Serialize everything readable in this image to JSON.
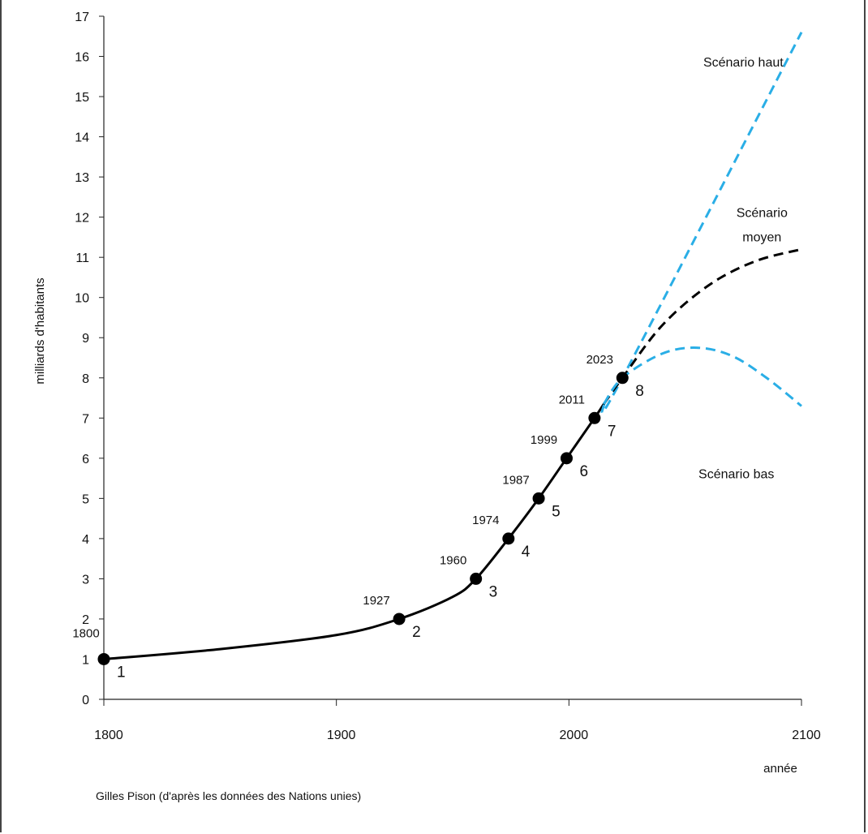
{
  "chart_data": {
    "type": "line",
    "xlabel": "année",
    "ylabel": "milliards d'habitants",
    "source": "Gilles Pison (d'après les données des Nations unies)",
    "xlim": [
      1800,
      2100
    ],
    "ylim": [
      0,
      17
    ],
    "x_ticks": [
      "1800",
      "1900",
      "2000",
      "2100"
    ],
    "y_ticks": [
      "0",
      "1",
      "2",
      "3",
      "4",
      "5",
      "6",
      "7",
      "8",
      "9",
      "10",
      "11",
      "12",
      "13",
      "14",
      "15",
      "16",
      "17"
    ],
    "series": [
      {
        "kind": "historical",
        "color": "#000000",
        "x": [
          1800,
          1850,
          1900,
          1927,
          1950,
          1960,
          1974,
          1987,
          1999,
          2011,
          2015
        ],
        "y": [
          1.0,
          1.25,
          1.6,
          2.0,
          2.55,
          3.0,
          4.0,
          5.0,
          6.0,
          7.0,
          7.35
        ]
      },
      {
        "name": "Scénario haut",
        "kind": "projection",
        "color": "#2aaee6",
        "x": [
          2015,
          2023,
          2100
        ],
        "y": [
          7.35,
          8.0,
          16.6
        ]
      },
      {
        "name": "Scénario moyen",
        "kind": "projection",
        "color": "#000000",
        "x": [
          2015,
          2023,
          2040,
          2060,
          2080,
          2100
        ],
        "y": [
          7.35,
          8.0,
          9.3,
          10.3,
          10.9,
          11.2
        ]
      },
      {
        "name": "Scénario bas",
        "kind": "projection",
        "color": "#2aaee6",
        "x": [
          2015,
          2023,
          2040,
          2055,
          2070,
          2085,
          2100
        ],
        "y": [
          7.35,
          8.0,
          8.6,
          8.75,
          8.55,
          8.0,
          7.3
        ]
      }
    ],
    "milestones": [
      {
        "year": 1800,
        "year_label": "1800",
        "y": 1,
        "label": "1"
      },
      {
        "year": 1927,
        "year_label": "1927",
        "y": 2,
        "label": "2"
      },
      {
        "year": 1960,
        "year_label": "1960",
        "y": 3,
        "label": "3"
      },
      {
        "year": 1974,
        "year_label": "1974",
        "y": 4,
        "label": "4"
      },
      {
        "year": 1987,
        "year_label": "1987",
        "y": 5,
        "label": "5"
      },
      {
        "year": 1999,
        "year_label": "1999",
        "y": 6,
        "label": "6"
      },
      {
        "year": 2011,
        "year_label": "2011",
        "y": 7,
        "label": "7"
      },
      {
        "year": 2023,
        "year_label": "2023",
        "y": 8,
        "label": "8"
      }
    ],
    "scenario_labels": [
      {
        "text": "Scénario haut",
        "x": 2075,
        "y": 15.75
      },
      {
        "text": "Scénario",
        "x": 2083,
        "y": 12.0
      },
      {
        "text": "moyen",
        "x": 2083,
        "y": 11.4
      },
      {
        "text": "Scénario bas",
        "x": 2072,
        "y": 5.5
      }
    ],
    "grid": false,
    "legend": "none"
  }
}
